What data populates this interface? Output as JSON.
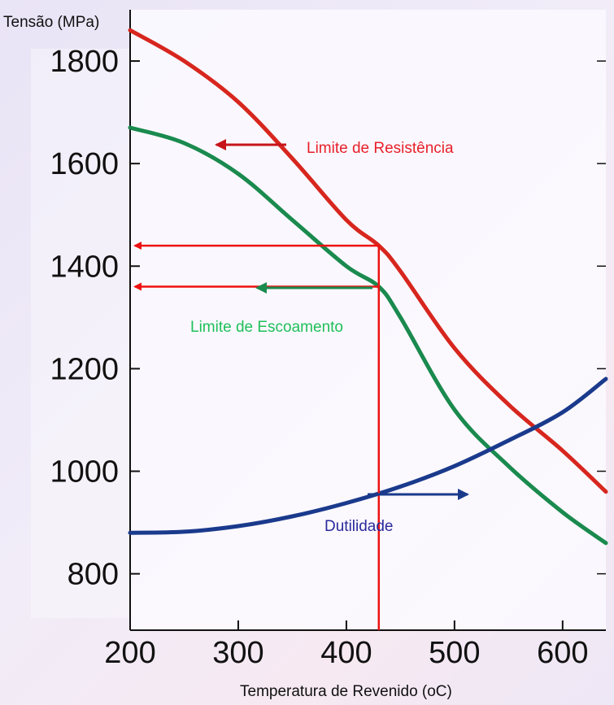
{
  "chart_data": {
    "type": "line",
    "ylabel": "Tensão (MPa)",
    "xlabel": "Temperatura de Revenido (oC)",
    "xlim": [
      200,
      640
    ],
    "ylim": [
      690,
      1900
    ],
    "xticks": [
      200,
      300,
      400,
      500,
      600
    ],
    "yticks": [
      800,
      1000,
      1200,
      1400,
      1600,
      1800
    ],
    "series": [
      {
        "name": "Limite de Resistência",
        "color": "#d7261e",
        "x": [
          200,
          250,
          300,
          350,
          400,
          430,
          450,
          500,
          550,
          600,
          640
        ],
        "y": [
          1860,
          1800,
          1720,
          1610,
          1490,
          1440,
          1390,
          1240,
          1130,
          1040,
          960
        ]
      },
      {
        "name": "Limite de Escoamento",
        "color": "#1a8a4e",
        "x": [
          200,
          250,
          300,
          350,
          400,
          430,
          450,
          500,
          550,
          600,
          640
        ],
        "y": [
          1670,
          1640,
          1580,
          1490,
          1400,
          1360,
          1300,
          1120,
          1010,
          920,
          860
        ]
      },
      {
        "name": "Dutilidade",
        "color": "#1a3a8c",
        "x": [
          200,
          250,
          300,
          350,
          400,
          450,
          500,
          550,
          600,
          640
        ],
        "y": [
          880,
          882,
          893,
          912,
          938,
          970,
          1010,
          1060,
          1115,
          1180
        ]
      }
    ],
    "annotations": [
      {
        "text": "Limite de Resistência",
        "color": "#e8202a"
      },
      {
        "text": "Limite de Escoamento",
        "color": "#1fbf5a"
      },
      {
        "text": "Dutilidade",
        "color": "#2a2a9c"
      }
    ],
    "guide": {
      "color": "#ee1111",
      "x": 430,
      "y_values": [
        1440,
        1360
      ]
    }
  }
}
